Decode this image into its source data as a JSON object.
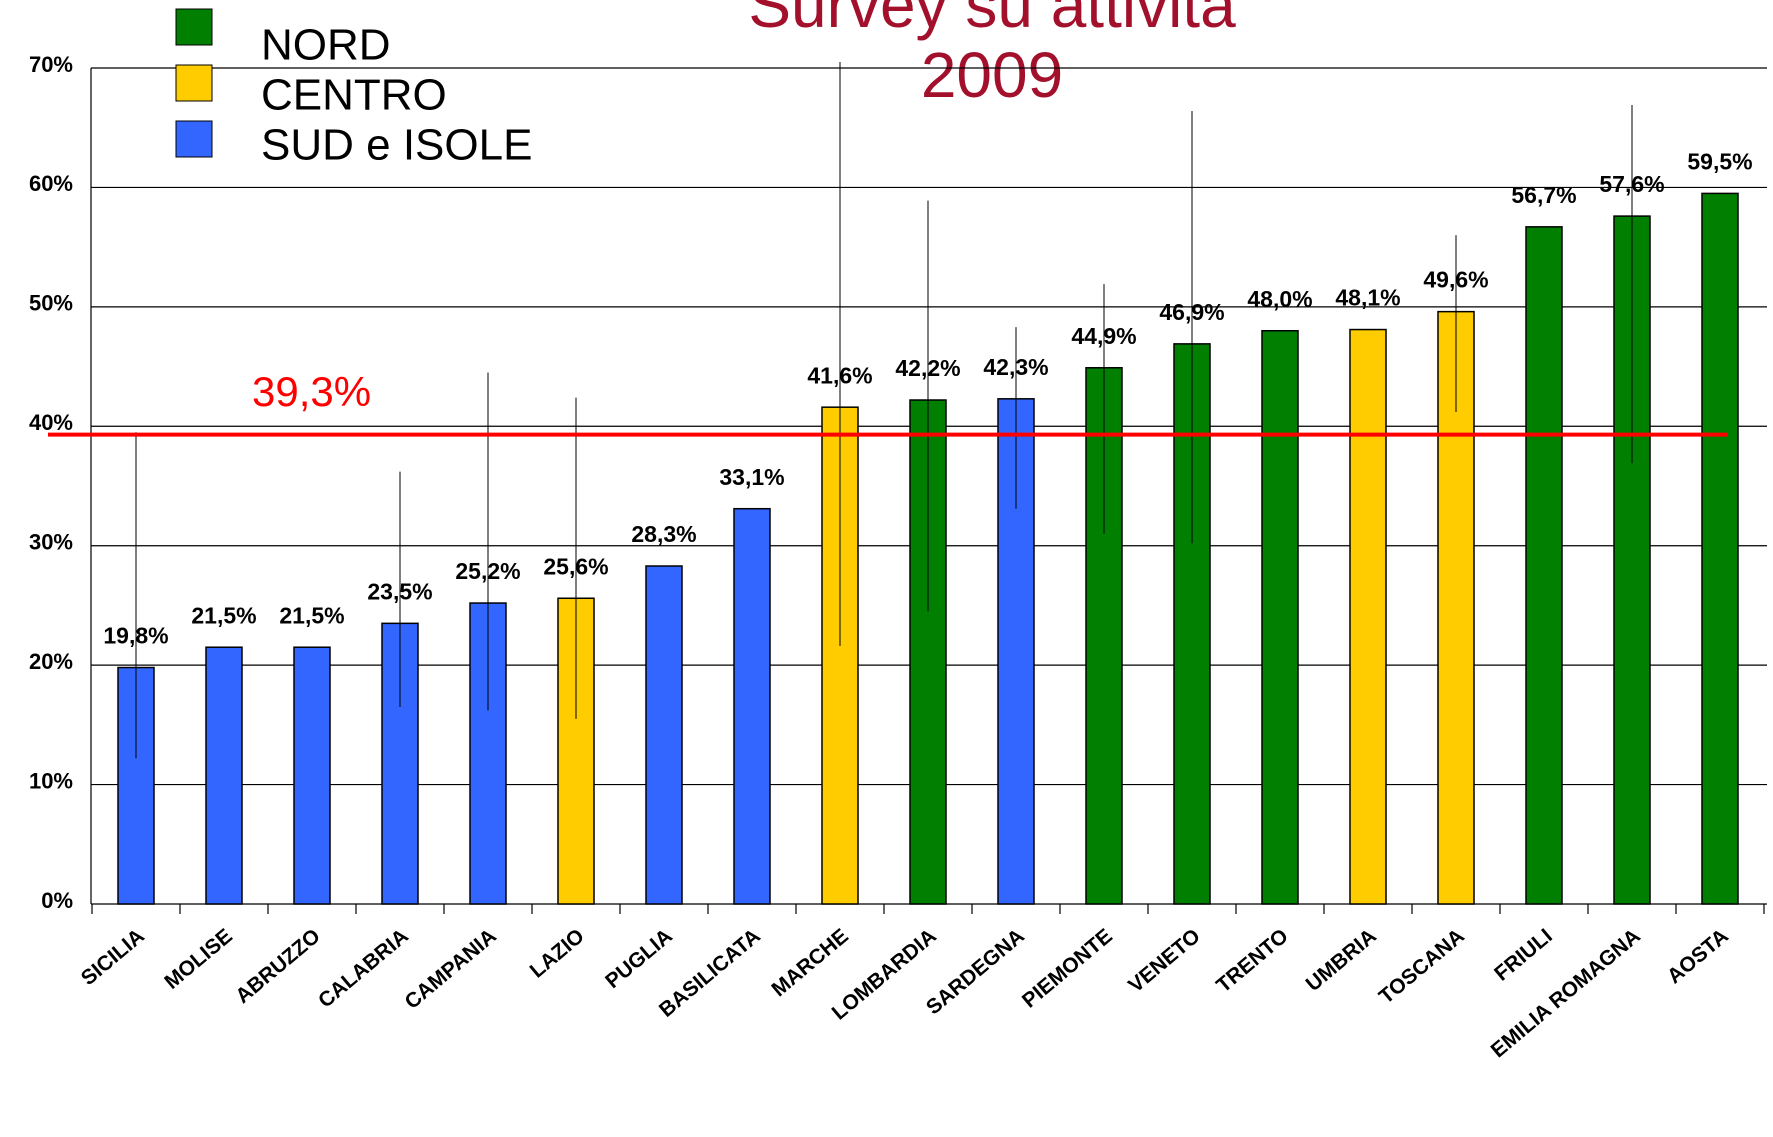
{
  "chart_data": {
    "type": "bar",
    "title": [
      "Survey su attività",
      "2009"
    ],
    "categories": [
      "SICILIA",
      "MOLISE",
      "ABRUZZO",
      "CALABRIA",
      "CAMPANIA",
      "LAZIO",
      "PUGLIA",
      "BASILICATA",
      "MARCHE",
      "LOMBARDIA",
      "SARDEGNA",
      "PIEMONTE",
      "VENETO",
      "TRENTO",
      "UMBRIA",
      "TOSCANA",
      "FRIULI",
      "EMILIA ROMAGNA",
      "AOSTA"
    ],
    "values": [
      19.8,
      21.5,
      21.5,
      23.5,
      25.2,
      25.6,
      28.3,
      33.1,
      41.6,
      42.2,
      42.3,
      44.9,
      46.9,
      48.0,
      48.1,
      49.6,
      56.7,
      57.6,
      59.5
    ],
    "value_labels": [
      "19,8%",
      "21,5%",
      "21,5%",
      "23,5%",
      "25,2%",
      "25,6%",
      "28,3%",
      "33,1%",
      "41,6%",
      "42,2%",
      "42,3%",
      "44,9%",
      "46,9%",
      "48,0%",
      "48,1%",
      "49,6%",
      "56,7%",
      "57,6%",
      "59,5%"
    ],
    "err_low": [
      12.2,
      null,
      null,
      16.5,
      16.2,
      15.5,
      null,
      null,
      21.6,
      24.5,
      33.1,
      31.0,
      30.2,
      null,
      null,
      41.2,
      null,
      36.9,
      null
    ],
    "err_high": [
      39.5,
      null,
      null,
      36.2,
      44.5,
      42.4,
      null,
      null,
      70.5,
      58.9,
      48.3,
      51.9,
      66.4,
      null,
      null,
      56.0,
      null,
      66.9,
      null
    ],
    "bar_group": [
      2,
      2,
      2,
      2,
      2,
      1,
      2,
      2,
      1,
      0,
      2,
      0,
      0,
      0,
      1,
      1,
      0,
      0,
      0
    ],
    "legend": [
      {
        "name": "NORD",
        "color": "#007f00"
      },
      {
        "name": "CENTRO",
        "color": "#ffcc00"
      },
      {
        "name": "SUD e ISOLE",
        "color": "#3366ff"
      }
    ],
    "average": {
      "value": 39.3,
      "label": "39,3%",
      "color": "#ff0000"
    },
    "ylim": [
      0,
      70
    ],
    "yticks": [
      {
        "value": 0,
        "label": "0%"
      },
      {
        "value": 10,
        "label": "10%"
      },
      {
        "value": 20,
        "label": "20%"
      },
      {
        "value": 30,
        "label": "30%"
      },
      {
        "value": 40,
        "label": "40%"
      },
      {
        "value": 50,
        "label": "50%"
      },
      {
        "value": 60,
        "label": "60%"
      },
      {
        "value": 70,
        "label": "70%"
      }
    ],
    "grid": true
  }
}
